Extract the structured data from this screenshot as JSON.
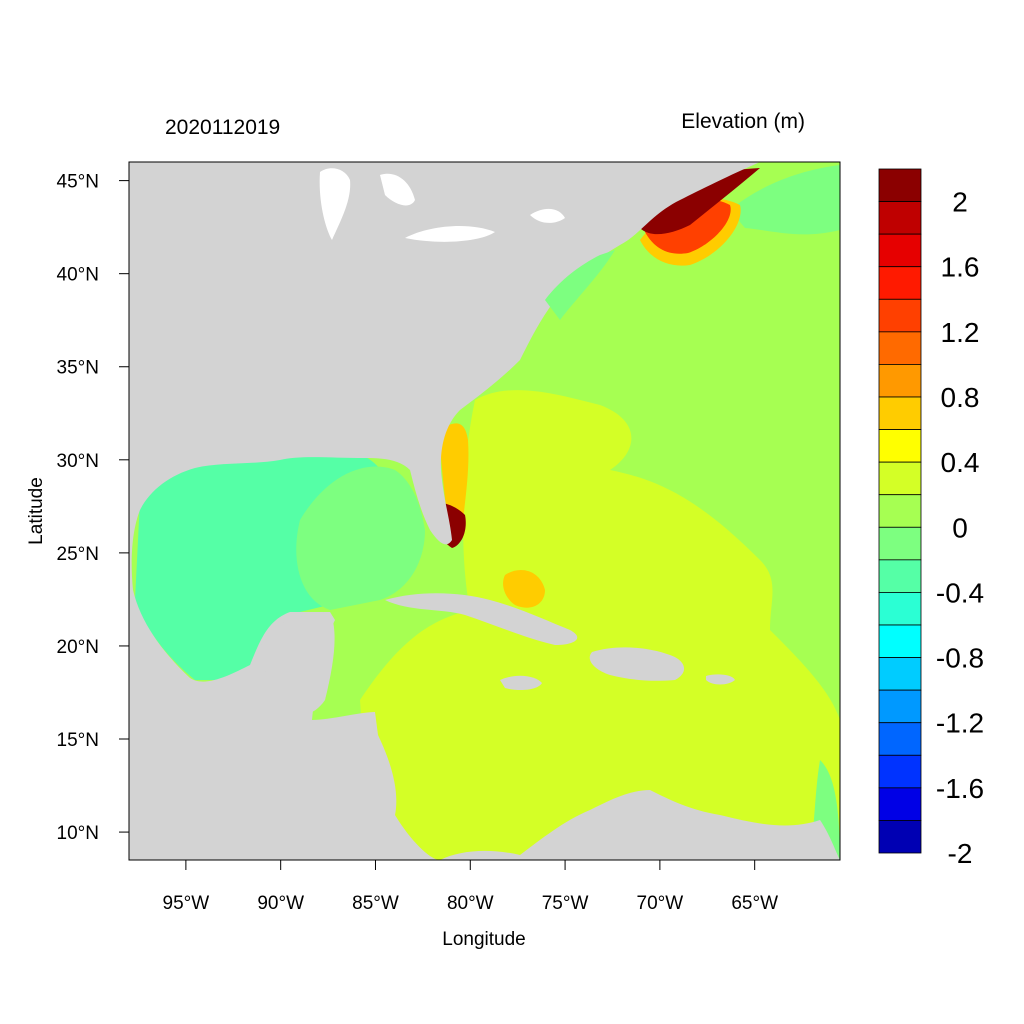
{
  "map": {
    "left_title": "2020112019",
    "right_title": "Elevation (m)",
    "xlabel": "Longitude",
    "ylabel": "Latitude",
    "lon_range": [
      -98,
      -60.5
    ],
    "lat_range": [
      8.5,
      46
    ],
    "lon_ticks": [
      {
        "value": -95,
        "label": "95°W"
      },
      {
        "value": -90,
        "label": "90°W"
      },
      {
        "value": -85,
        "label": "85°W"
      },
      {
        "value": -80,
        "label": "80°W"
      },
      {
        "value": -75,
        "label": "75°W"
      },
      {
        "value": -70,
        "label": "70°W"
      },
      {
        "value": -65,
        "label": "65°W"
      }
    ],
    "lat_ticks": [
      {
        "value": 45,
        "label": "45°N"
      },
      {
        "value": 40,
        "label": "40°N"
      },
      {
        "value": 35,
        "label": "35°N"
      },
      {
        "value": 30,
        "label": "30°N"
      },
      {
        "value": 25,
        "label": "25°N"
      },
      {
        "value": 20,
        "label": "20°N"
      },
      {
        "value": 15,
        "label": "15°N"
      },
      {
        "value": 10,
        "label": "10°N"
      }
    ]
  },
  "colorbar": {
    "colors_top_to_bottom": [
      "#8b0000",
      "#bf0000",
      "#e60000",
      "#ff1a00",
      "#ff4000",
      "#ff6a00",
      "#ff9900",
      "#ffcc00",
      "#ffff00",
      "#d4ff26",
      "#a6ff52",
      "#7dff80",
      "#55ffa6",
      "#2bffd4",
      "#00ffff",
      "#00ccff",
      "#0099ff",
      "#0066ff",
      "#0033ff",
      "#0000e6",
      "#0000b3"
    ],
    "labels": [
      "2",
      "1.6",
      "1.2",
      "0.8",
      "0.4",
      "0",
      "-0.4",
      "-0.8",
      "-1.2",
      "-1.6",
      "-2"
    ]
  },
  "colors": {
    "land": "#d3d3d3",
    "water_level_0_to_0_2": "#a6ff52",
    "water_level_0_2_to_0_4": "#d4ff26",
    "water_level_neg_0_2_to_0": "#7dff80",
    "water_level_neg_0_4_to_neg_0_2": "#55ffa6",
    "surge_high": "#8b0000"
  }
}
